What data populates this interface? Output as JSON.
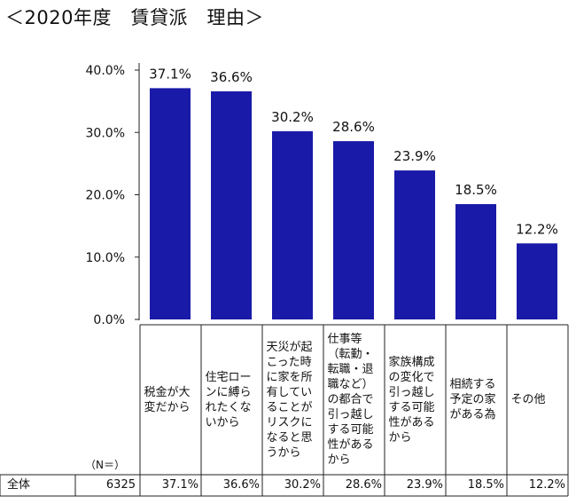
{
  "title": "＜2020年度　賃貸派　理由＞",
  "chart_data": {
    "type": "bar",
    "categories": [
      "税金が大変だから",
      "住宅ローンに縛られたくないから",
      "天災が起こった時に家を所有していることがリスクになると思うから",
      "仕事等（転勤・転職・退職など）の都合で引っ越しする可能性があるから",
      "家族構成の変化で引っ越しする可能性があるから",
      "相続する予定の家がある為",
      "その他"
    ],
    "values": [
      37.1,
      36.6,
      30.2,
      28.6,
      23.9,
      18.5,
      12.2
    ],
    "data_labels": [
      "37.1%",
      "36.6%",
      "30.2%",
      "28.6%",
      "23.9%",
      "18.5%",
      "12.2%"
    ],
    "y_ticks": [
      "0.0%",
      "10.0%",
      "20.0%",
      "30.0%",
      "40.0%"
    ],
    "ylim": [
      0,
      40
    ],
    "bar_color": "#1a1aa8",
    "grid": false,
    "table": {
      "n_label": "（N＝）",
      "row_label": "全体",
      "n_value": "6325",
      "cells": [
        "37.1%",
        "36.6%",
        "30.2%",
        "28.6%",
        "23.9%",
        "18.5%",
        "12.2%"
      ]
    }
  }
}
